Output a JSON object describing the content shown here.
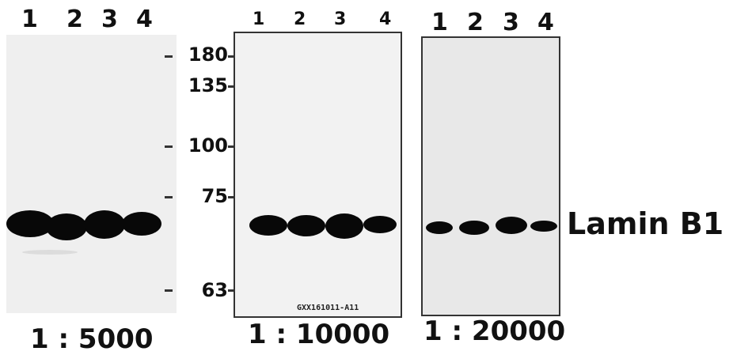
{
  "panels": [
    {
      "lane_labels": [
        "1",
        "2",
        "3",
        "4"
      ],
      "dilution": "1 : 5000",
      "background": "#efefef",
      "bands": [
        {
          "lane": "1",
          "intensity": 1.0
        },
        {
          "lane": "2",
          "intensity": 1.0
        },
        {
          "lane": "3",
          "intensity": 1.0
        },
        {
          "lane": "4",
          "intensity": 0.95
        }
      ]
    },
    {
      "lane_labels": [
        "1",
        "2",
        "3",
        "4"
      ],
      "dilution": "1 : 10000",
      "background": "#f2f2f2",
      "lot_label": "GXX161011-A11",
      "bands": [
        {
          "lane": "1",
          "intensity": 0.9
        },
        {
          "lane": "2",
          "intensity": 0.9
        },
        {
          "lane": "3",
          "intensity": 1.0
        },
        {
          "lane": "4",
          "intensity": 0.8
        }
      ]
    },
    {
      "lane_labels": [
        "1",
        "2",
        "3",
        "4"
      ],
      "dilution": "1 : 20000",
      "background": "#e8e8e8",
      "bands": [
        {
          "lane": "1",
          "intensity": 0.7
        },
        {
          "lane": "2",
          "intensity": 0.75
        },
        {
          "lane": "3",
          "intensity": 0.9
        },
        {
          "lane": "4",
          "intensity": 0.6
        }
      ]
    }
  ],
  "markers": [
    "180",
    "135",
    "100",
    "75",
    "63"
  ],
  "target_label": "Lamin B1"
}
